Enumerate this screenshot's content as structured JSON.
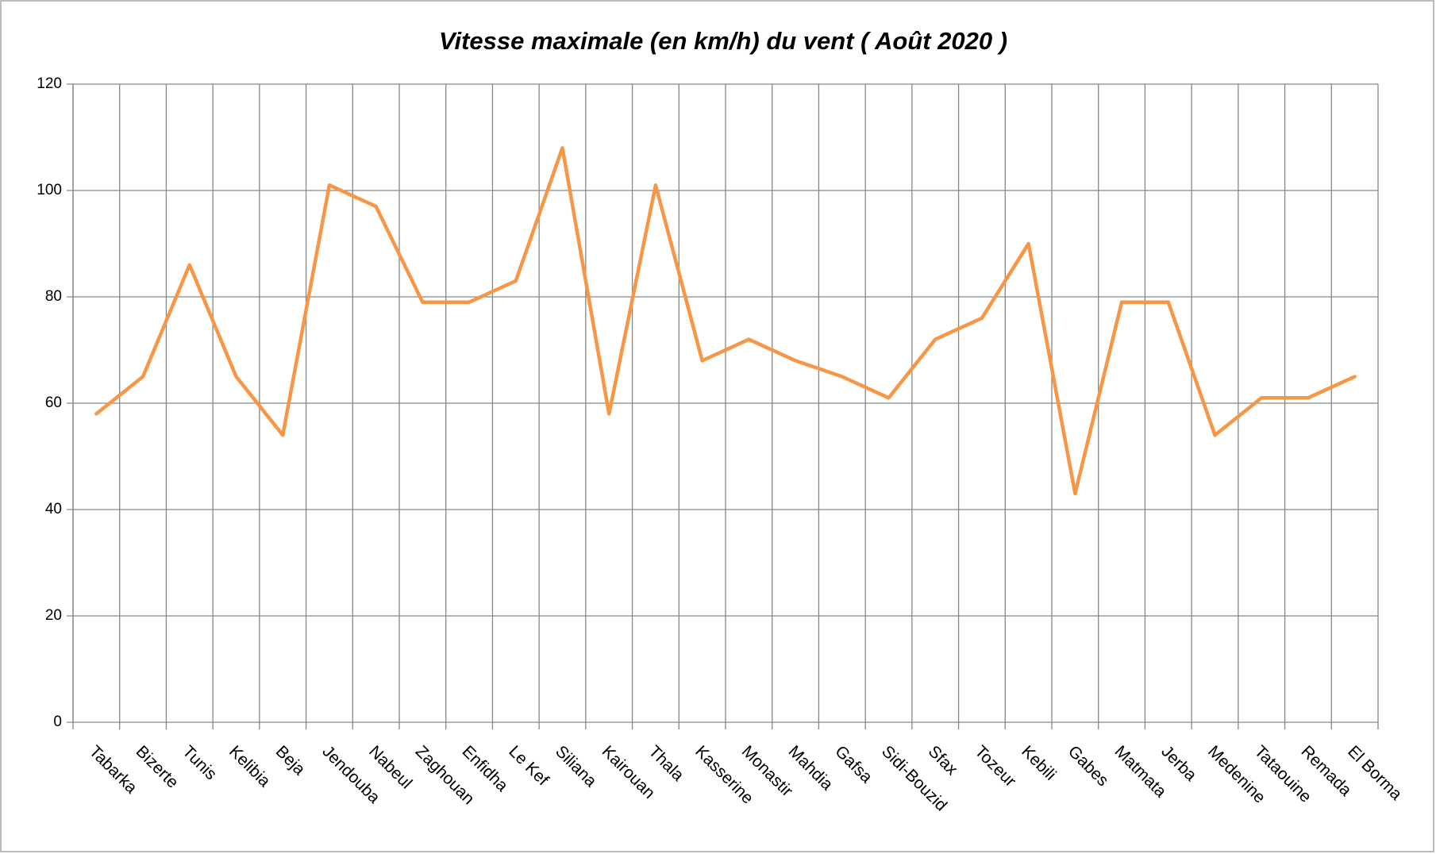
{
  "chart_data": {
    "type": "line",
    "title": "Vitesse maximale (en km/h) du vent  ( Août 2020 )",
    "categories": [
      "Tabarka",
      "Bizerte",
      "Tunis",
      "Kelibia",
      "Beja",
      "Jendouba",
      "Nabeul",
      "Zaghouan",
      "Enfidha",
      "Le Kef",
      "Siliana",
      "Kairouan",
      "Thala",
      "Kasserine",
      "Monastir",
      "Mahdia",
      "Gafsa",
      "Sidi-Bouzid",
      "Sfax",
      "Tozeur",
      "Kebili",
      "Gabes",
      "Matmata",
      "Jerba",
      "Medenine",
      "Tataouine",
      "Remada",
      "El Borma"
    ],
    "values": [
      58,
      65,
      86,
      65,
      54,
      101,
      97,
      79,
      79,
      83,
      108,
      58,
      101,
      68,
      72,
      68,
      65,
      61,
      72,
      76,
      90,
      43,
      79,
      79,
      54,
      61,
      61,
      65
    ],
    "color": "#f79646",
    "ylim": [
      0,
      120
    ],
    "yticks": [
      0,
      20,
      40,
      60,
      80,
      100,
      120
    ],
    "grid": true
  }
}
